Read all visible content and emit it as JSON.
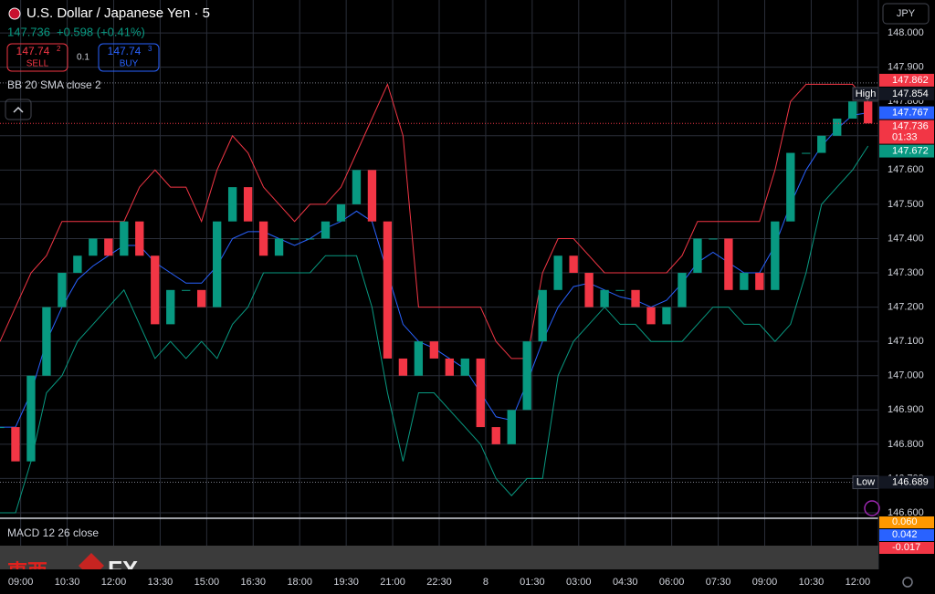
{
  "header": {
    "title": "U.S. Dollar / Japanese Yen · 5",
    "price": 147.736,
    "change": "+0.598 (+0.41%)",
    "sell": {
      "price": "147.74",
      "pip": "2",
      "label": "SELL"
    },
    "spread": "0.1",
    "buy": {
      "price": "147.74",
      "pip": "3",
      "label": "BUY"
    },
    "currency": "JPY",
    "indicator": "BB 20 SMA close 2"
  },
  "watermark": {
    "left": "東西",
    "right": "FX"
  },
  "chart_data": {
    "type": "candlestick",
    "up_color": "#089981",
    "down_color": "#f23645",
    "grid": true,
    "x": [
      0,
      6,
      12,
      18,
      24,
      30,
      36,
      42,
      48,
      54,
      60,
      66,
      72,
      78,
      84,
      90,
      96,
      102,
      108,
      114,
      120,
      126,
      132,
      138,
      144,
      150,
      156,
      162,
      168,
      174,
      180,
      186,
      192,
      198,
      204,
      210,
      216,
      222,
      228,
      234,
      240,
      246,
      252,
      258,
      264,
      270,
      276,
      282,
      288,
      294,
      300,
      306,
      312,
      318,
      324,
      330,
      336
    ],
    "values": [
      146.85,
      146.75,
      147.0,
      147.2,
      147.3,
      147.35,
      147.4,
      147.35,
      147.45,
      147.35,
      147.15,
      147.25,
      147.25,
      147.2,
      147.45,
      147.55,
      147.45,
      147.35,
      147.4,
      147.4,
      147.4,
      147.45,
      147.5,
      147.6,
      147.45,
      147.05,
      147.0,
      147.1,
      147.05,
      147.0,
      147.05,
      146.85,
      146.8,
      146.9,
      147.1,
      147.25,
      147.35,
      147.3,
      147.2,
      147.25,
      147.25,
      147.2,
      147.15,
      147.2,
      147.3,
      147.4,
      147.4,
      147.25,
      147.3,
      147.25,
      147.45,
      147.65,
      147.65,
      147.7,
      147.75,
      147.8,
      147.736
    ],
    "series": [
      {
        "color": "#f23645",
        "values": [
          147.1,
          147.2,
          147.3,
          147.35,
          147.45,
          147.45,
          147.45,
          147.45,
          147.45,
          147.55,
          147.6,
          147.55,
          147.55,
          147.45,
          147.6,
          147.7,
          147.65,
          147.55,
          147.5,
          147.45,
          147.5,
          147.5,
          147.55,
          147.65,
          147.75,
          147.85,
          147.7,
          147.2,
          147.2,
          147.2,
          147.2,
          147.2,
          147.1,
          147.05,
          147.05,
          147.3,
          147.4,
          147.4,
          147.35,
          147.3,
          147.3,
          147.3,
          147.3,
          147.3,
          147.35,
          147.45,
          147.45,
          147.45,
          147.45,
          147.45,
          147.6,
          147.8,
          147.85,
          147.85,
          147.85,
          147.85,
          147.8
        ]
      },
      {
        "color": "#2962ff",
        "values": [
          146.85,
          146.85,
          146.95,
          147.1,
          147.2,
          147.28,
          147.32,
          147.35,
          147.38,
          147.38,
          147.33,
          147.3,
          147.27,
          147.27,
          147.32,
          147.4,
          147.42,
          147.42,
          147.4,
          147.38,
          147.4,
          147.43,
          147.45,
          147.48,
          147.45,
          147.3,
          147.15,
          147.1,
          147.08,
          147.05,
          147.02,
          146.95,
          146.88,
          146.87,
          146.98,
          147.1,
          147.2,
          147.26,
          147.27,
          147.25,
          147.23,
          147.22,
          147.2,
          147.22,
          147.27,
          147.33,
          147.36,
          147.33,
          147.3,
          147.3,
          147.38,
          147.5,
          147.6,
          147.67,
          147.72,
          147.76,
          147.767
        ]
      },
      {
        "color": "#089981",
        "values": [
          146.6,
          146.6,
          146.75,
          146.95,
          147.0,
          147.1,
          147.15,
          147.2,
          147.25,
          147.15,
          147.05,
          147.1,
          147.05,
          147.1,
          147.05,
          147.15,
          147.2,
          147.3,
          147.3,
          147.3,
          147.3,
          147.35,
          147.35,
          147.35,
          147.2,
          146.95,
          146.75,
          146.95,
          146.95,
          146.9,
          146.85,
          146.8,
          146.7,
          146.65,
          146.7,
          146.7,
          147.0,
          147.1,
          147.15,
          147.2,
          147.15,
          147.15,
          147.1,
          147.1,
          147.1,
          147.15,
          147.2,
          147.2,
          147.15,
          147.15,
          147.1,
          147.15,
          147.3,
          147.5,
          147.55,
          147.6,
          147.67
        ]
      }
    ],
    "xlim": [
      0,
      340
    ],
    "ylim": [
      146.584,
      148.096
    ],
    "xticks": [
      {
        "value": 8,
        "label": "09:00"
      },
      {
        "value": 26,
        "label": "10:30"
      },
      {
        "value": 44,
        "label": "12:00"
      },
      {
        "value": 62,
        "label": "13:30"
      },
      {
        "value": 80,
        "label": "15:00"
      },
      {
        "value": 98,
        "label": "16:30"
      },
      {
        "value": 116,
        "label": "18:00"
      },
      {
        "value": 134,
        "label": "19:30"
      },
      {
        "value": 152,
        "label": "21:00"
      },
      {
        "value": 170,
        "label": "22:30"
      },
      {
        "value": 188,
        "label": "8"
      },
      {
        "value": 206,
        "label": "01:30"
      },
      {
        "value": 224,
        "label": "03:00"
      },
      {
        "value": 242,
        "label": "04:30"
      },
      {
        "value": 260,
        "label": "06:00"
      },
      {
        "value": 278,
        "label": "07:30"
      },
      {
        "value": 296,
        "label": "09:00"
      },
      {
        "value": 314,
        "label": "10:30"
      },
      {
        "value": 332,
        "label": "12:00"
      }
    ],
    "yticks": [
      {
        "value": 146.6,
        "label": "146.600"
      },
      {
        "value": 146.7,
        "label": "146.700"
      },
      {
        "value": 146.8,
        "label": "146.800"
      },
      {
        "value": 146.9,
        "label": "146.900"
      },
      {
        "value": 147.0,
        "label": "147.000"
      },
      {
        "value": 147.1,
        "label": "147.100"
      },
      {
        "value": 147.2,
        "label": "147.200"
      },
      {
        "value": 147.3,
        "label": "147.300"
      },
      {
        "value": 147.4,
        "label": "147.400"
      },
      {
        "value": 147.5,
        "label": "147.500"
      },
      {
        "value": 147.6,
        "label": "147.600"
      },
      {
        "value": 147.7,
        "label": "147.700"
      },
      {
        "value": 147.8,
        "label": "147.800"
      },
      {
        "value": 147.9,
        "label": "147.900"
      },
      {
        "value": 148.0,
        "label": "148.000"
      }
    ],
    "price_labels": [
      {
        "value": 147.862,
        "color": "#f23645"
      },
      {
        "value": 147.854,
        "tag": "High",
        "color": "#131722"
      },
      {
        "value": 147.767,
        "color": "#2962ff"
      },
      {
        "value": 147.736,
        "color": "#f23645",
        "countdown": "01:33"
      },
      {
        "value": 147.672,
        "color": "#089981"
      },
      {
        "value": 146.689,
        "tag": "Low",
        "color": "#131722"
      }
    ]
  },
  "macd": {
    "title": "MACD 12 26 close",
    "values": [
      {
        "value": 0.06,
        "label": "0.060",
        "color": "#ff9800"
      },
      {
        "value": 0.042,
        "color": "#2962ff"
      },
      {
        "value": -0.017,
        "color": "#f23645"
      }
    ]
  }
}
